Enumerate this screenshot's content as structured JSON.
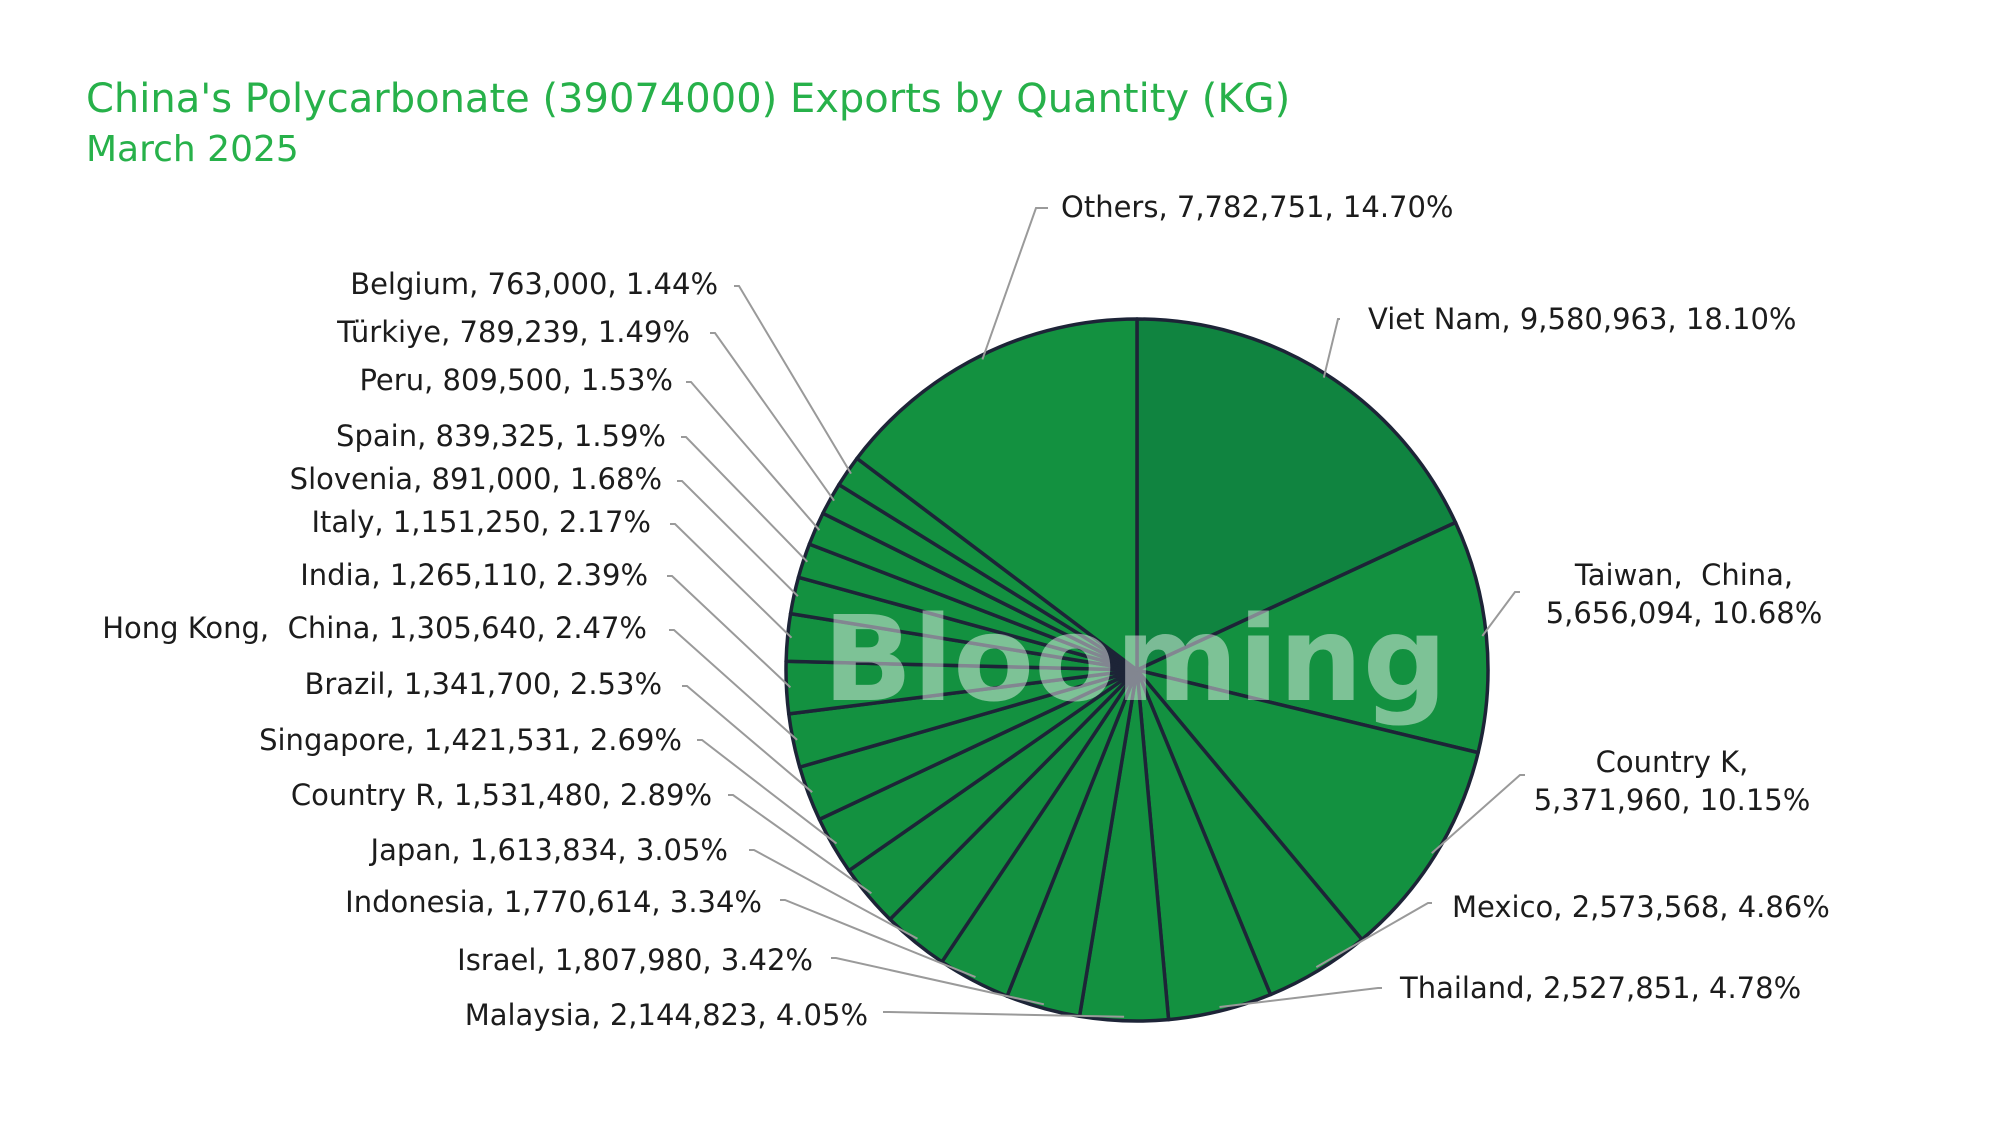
{
  "title": "China's Polycarbonate (39074000) Exports by Quantity (KG)",
  "subtitle": "March 2025",
  "watermark": "Blooming",
  "colors": {
    "title": "#27b14a",
    "slice_main": "#139140",
    "slice_top": "#108440",
    "slice_edge": "#1d2437",
    "leader": "#9a9a9a",
    "label_text": "#1c1c1c"
  },
  "chart_data": {
    "type": "pie",
    "title": "China's Polycarbonate (39074000) Exports by Quantity (KG)",
    "subtitle": "March 2025",
    "unit": "KG",
    "slices": [
      {
        "label": "Viet Nam",
        "value": 9580963,
        "percent": "18.10%",
        "text": "Viet Nam, 9,580,963, 18.10%"
      },
      {
        "label": "Taiwan, China",
        "value": 5656094,
        "percent": "10.68%",
        "text": "Taiwan,  China,",
        "text2": "5,656,094, 10.68%"
      },
      {
        "label": "Country K",
        "value": 5371960,
        "percent": "10.15%",
        "text": "Country K,",
        "text2": "5,371,960, 10.15%"
      },
      {
        "label": "Mexico",
        "value": 2573568,
        "percent": "4.86%",
        "text": "Mexico, 2,573,568, 4.86%"
      },
      {
        "label": "Thailand",
        "value": 2527851,
        "percent": "4.78%",
        "text": "Thailand, 2,527,851, 4.78%"
      },
      {
        "label": "Malaysia",
        "value": 2144823,
        "percent": "4.05%",
        "text": "Malaysia, 2,144,823, 4.05%"
      },
      {
        "label": "Israel",
        "value": 1807980,
        "percent": "3.42%",
        "text": "Israel, 1,807,980, 3.42%"
      },
      {
        "label": "Indonesia",
        "value": 1770614,
        "percent": "3.34%",
        "text": "Indonesia, 1,770,614, 3.34%"
      },
      {
        "label": "Japan",
        "value": 1613834,
        "percent": "3.05%",
        "text": "Japan, 1,613,834, 3.05%"
      },
      {
        "label": "Country R",
        "value": 1531480,
        "percent": "2.89%",
        "text": "Country R, 1,531,480, 2.89%"
      },
      {
        "label": "Singapore",
        "value": 1421531,
        "percent": "2.69%",
        "text": "Singapore, 1,421,531, 2.69%"
      },
      {
        "label": "Brazil",
        "value": 1341700,
        "percent": "2.53%",
        "text": "Brazil, 1,341,700, 2.53%"
      },
      {
        "label": "Hong Kong, China",
        "value": 1305640,
        "percent": "2.47%",
        "text": "Hong Kong,  China, 1,305,640, 2.47%"
      },
      {
        "label": "India",
        "value": 1265110,
        "percent": "2.39%",
        "text": "India, 1,265,110, 2.39%"
      },
      {
        "label": "Italy",
        "value": 1151250,
        "percent": "2.17%",
        "text": "Italy, 1,151,250, 2.17%"
      },
      {
        "label": "Slovenia",
        "value": 891000,
        "percent": "1.68%",
        "text": "Slovenia, 891,000, 1.68%"
      },
      {
        "label": "Spain",
        "value": 839325,
        "percent": "1.59%",
        "text": "Spain, 839,325, 1.59%"
      },
      {
        "label": "Peru",
        "value": 809500,
        "percent": "1.53%",
        "text": "Peru, 809,500, 1.53%"
      },
      {
        "label": "Türkiye",
        "value": 789239,
        "percent": "1.49%",
        "text": "Türkiye, 789,239, 1.49%"
      },
      {
        "label": "Belgium",
        "value": 763000,
        "percent": "1.44%",
        "text": "Belgium, 763,000, 1.44%"
      },
      {
        "label": "Others",
        "value": 7782751,
        "percent": "14.70%",
        "text": "Others, 7,782,751, 14.70%"
      }
    ],
    "start_angle": "12 o'clock",
    "direction": "clockwise",
    "legend": "none"
  }
}
